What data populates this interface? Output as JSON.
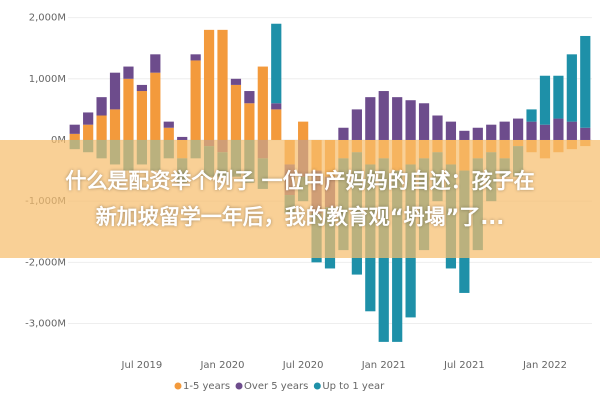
{
  "chart_data": {
    "type": "stacked_bar",
    "categories": [
      null,
      null,
      null,
      null,
      null,
      "Jul 2019",
      null,
      null,
      null,
      null,
      null,
      "Jan 2020",
      null,
      null,
      null,
      null,
      null,
      "Jul 2020",
      null,
      null,
      null,
      null,
      null,
      "Jan 2021",
      null,
      null,
      null,
      null,
      null,
      "Jul 2021",
      null,
      null,
      null,
      null,
      null,
      "Jan 2022",
      null,
      null,
      null
    ],
    "series": [
      {
        "name": "1-5 years",
        "color": "#f39a3c",
        "values": [
          100,
          250,
          400,
          500,
          1000,
          800,
          1100,
          200,
          -300,
          1300,
          1800,
          1800,
          900,
          600,
          1200,
          500,
          -400,
          300,
          -500,
          -600,
          -300,
          -200,
          -400,
          -300,
          -500,
          -400,
          -300,
          -200,
          -400,
          -500,
          -300,
          -200,
          -300,
          -100,
          -200,
          -300,
          -200,
          -150,
          -100
        ]
      },
      {
        "name": "Over 5 years",
        "color": "#6d4c8c",
        "values": [
          150,
          200,
          300,
          600,
          200,
          100,
          300,
          100,
          50,
          100,
          -100,
          -200,
          100,
          200,
          -300,
          100,
          -500,
          -600,
          -700,
          -500,
          200,
          500,
          700,
          800,
          700,
          650,
          600,
          400,
          300,
          150,
          200,
          250,
          300,
          350,
          300,
          250,
          350,
          300,
          200
        ]
      },
      {
        "name": "Up to 1 year",
        "color": "#1e90a8",
        "values": [
          -150,
          -200,
          -300,
          -400,
          -500,
          -400,
          -500,
          -300,
          -400,
          -300,
          -500,
          -400,
          -600,
          -700,
          -500,
          1300,
          -300,
          -400,
          -800,
          -1000,
          -1500,
          -2000,
          -2400,
          -3000,
          -2800,
          -2500,
          -1500,
          -800,
          -1700,
          -2000,
          -1500,
          -800,
          -300,
          -500,
          200,
          800,
          700,
          1100,
          1500
        ]
      }
    ],
    "ylim": [
      -3400,
      2100
    ],
    "yticks": [
      {
        "value": -3000,
        "label": "-3,000M"
      },
      {
        "value": -2000,
        "label": "-2,000M"
      },
      {
        "value": -1000,
        "label": "-1,000M"
      },
      {
        "value": 0,
        "label": "0M"
      },
      {
        "value": 1000,
        "label": "1,000M"
      },
      {
        "value": 2000,
        "label": "2,000M"
      }
    ],
    "grid": true
  },
  "caption": [
    "什么是配资举个例子 一位中产妈妈的自述：孩子在",
    "新加坡留学一年后，我的教育观“坍塌”了..."
  ]
}
